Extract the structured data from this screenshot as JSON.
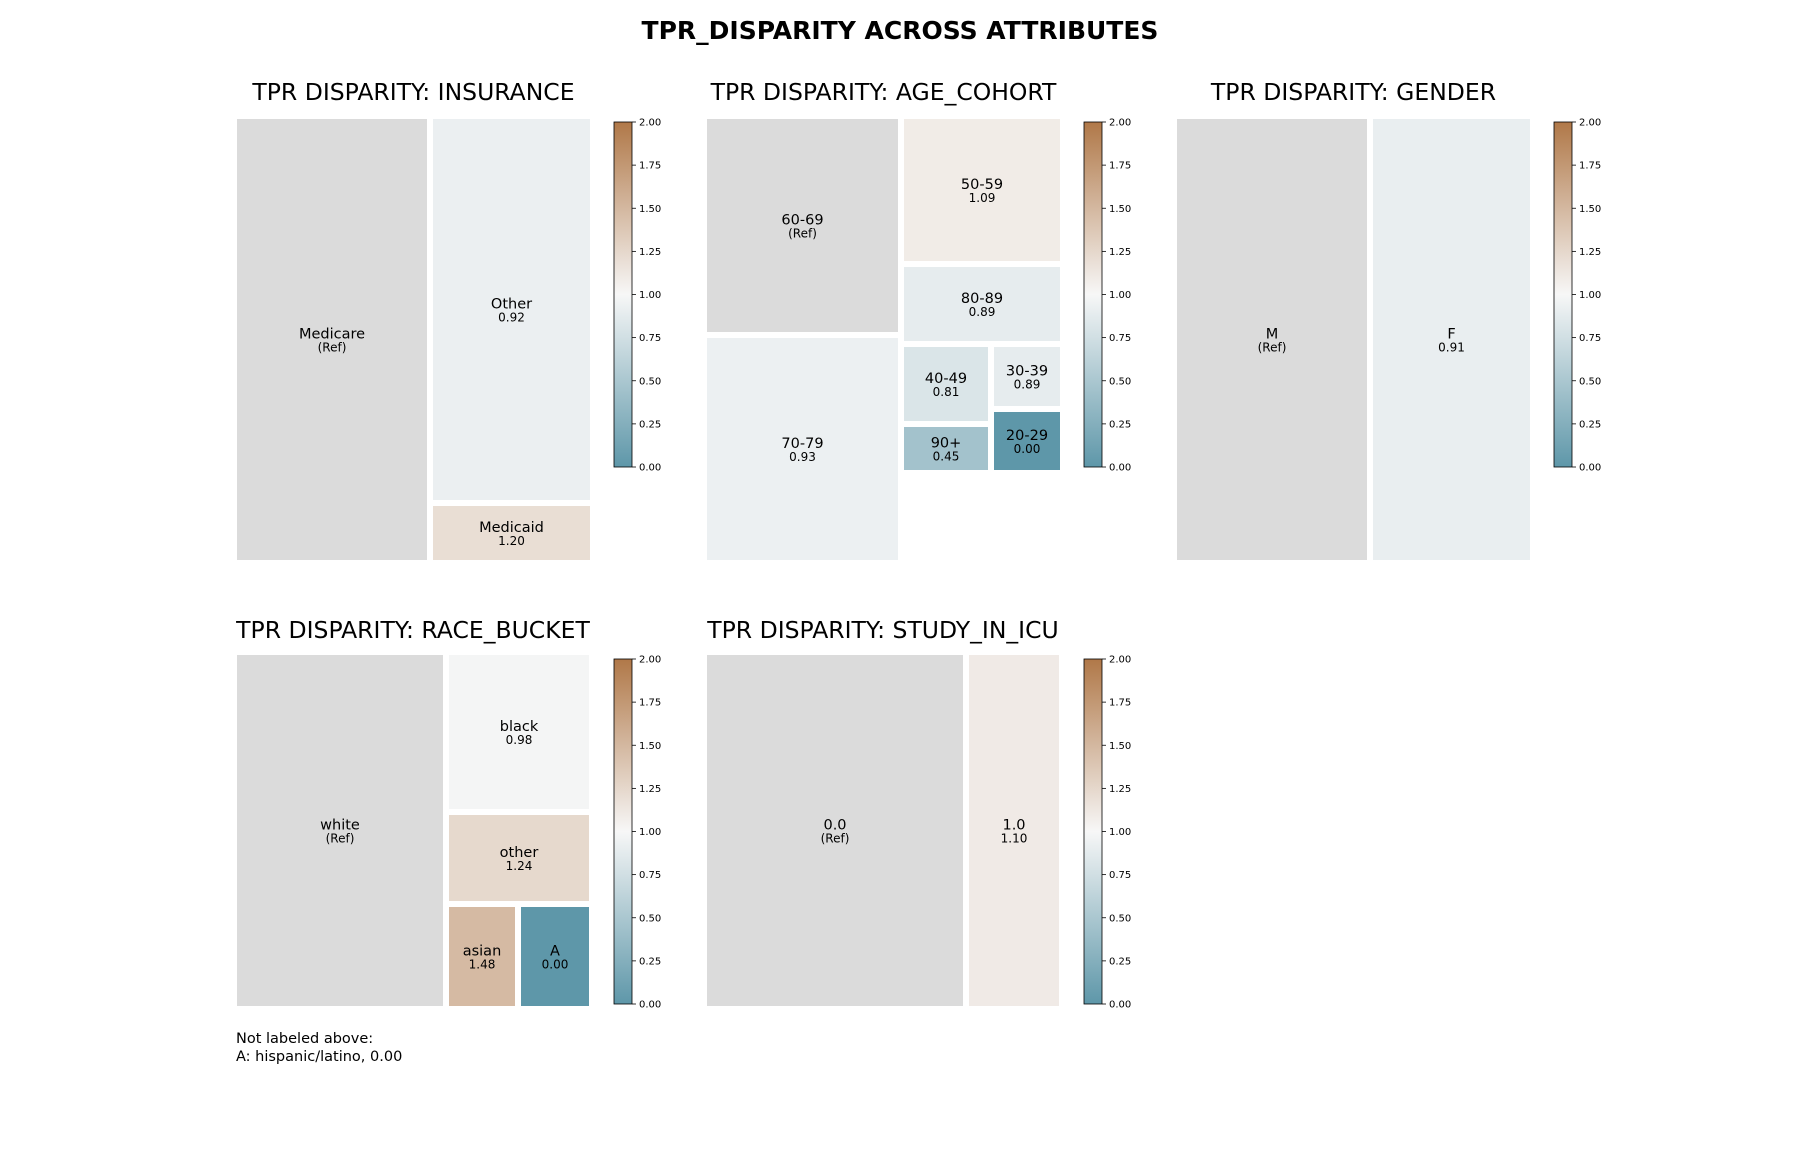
{
  "title": "TPR_DISPARITY ACROSS ATTRIBUTES",
  "colors": {
    "ref": "#dbdbdb",
    "scale_low": "#5e97a9",
    "scale_mid": "#f7f7f7",
    "scale_high": "#b07848"
  },
  "colorbar_ticks": [
    "0.00",
    "0.25",
    "0.50",
    "0.75",
    "1.00",
    "1.25",
    "1.50",
    "1.75",
    "2.00"
  ],
  "chart_data": [
    {
      "type": "treemap",
      "title": "TPR DISPARITY: INSURANCE",
      "color_range": [
        0,
        2
      ],
      "cells": [
        {
          "label": "Medicare",
          "value_text": "(Ref)",
          "value": null,
          "ref": true
        },
        {
          "label": "Other",
          "value_text": "0.92",
          "value": 0.92
        },
        {
          "label": "Medicaid",
          "value_text": "1.20",
          "value": 1.2
        }
      ]
    },
    {
      "type": "treemap",
      "title": "TPR DISPARITY: AGE_COHORT",
      "color_range": [
        0,
        2
      ],
      "cells": [
        {
          "label": "60-69",
          "value_text": "(Ref)",
          "value": null,
          "ref": true
        },
        {
          "label": "70-79",
          "value_text": "0.93",
          "value": 0.93
        },
        {
          "label": "50-59",
          "value_text": "1.09",
          "value": 1.09
        },
        {
          "label": "80-89",
          "value_text": "0.89",
          "value": 0.89
        },
        {
          "label": "40-49",
          "value_text": "0.81",
          "value": 0.81
        },
        {
          "label": "90+",
          "value_text": "0.45",
          "value": 0.45
        },
        {
          "label": "30-39",
          "value_text": "0.89",
          "value": 0.89
        },
        {
          "label": "20-29",
          "value_text": "0.00",
          "value": 0.0
        }
      ]
    },
    {
      "type": "treemap",
      "title": "TPR DISPARITY: GENDER",
      "color_range": [
        0,
        2
      ],
      "cells": [
        {
          "label": "M",
          "value_text": "(Ref)",
          "value": null,
          "ref": true
        },
        {
          "label": "F",
          "value_text": "0.91",
          "value": 0.91
        }
      ]
    },
    {
      "type": "treemap",
      "title": "TPR DISPARITY: RACE_BUCKET",
      "color_range": [
        0,
        2
      ],
      "cells": [
        {
          "label": "white",
          "value_text": "(Ref)",
          "value": null,
          "ref": true
        },
        {
          "label": "black",
          "value_text": "0.98",
          "value": 0.98
        },
        {
          "label": "other",
          "value_text": "1.24",
          "value": 1.24
        },
        {
          "label": "asian",
          "value_text": "1.48",
          "value": 1.48
        },
        {
          "label": "A",
          "value_text": "0.00",
          "value": 0.0
        }
      ]
    },
    {
      "type": "treemap",
      "title": "TPR DISPARITY: STUDY_IN_ICU",
      "color_range": [
        0,
        2
      ],
      "cells": [
        {
          "label": "0.0",
          "value_text": "(Ref)",
          "value": null,
          "ref": true
        },
        {
          "label": "1.0",
          "value_text": "1.10",
          "value": 1.1
        }
      ]
    }
  ],
  "footnote": {
    "heading": "Not labeled above:",
    "items": [
      "A: hispanic/latino, 0.00"
    ]
  }
}
